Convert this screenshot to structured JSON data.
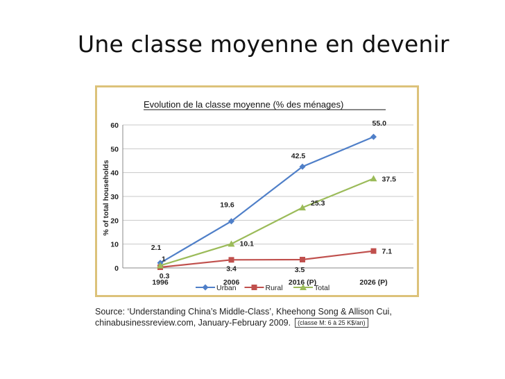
{
  "slide": {
    "title": "Une classe moyenne en devenir"
  },
  "colors": {
    "frame": "#dcc27a",
    "urban": "#4f7fc8",
    "rural": "#c0504d",
    "total": "#9bbb59",
    "grid": "#c8c8c8"
  },
  "chart_data": {
    "type": "line",
    "title": "Evolution de la classe moyenne (% des ménages)",
    "xlabel": "",
    "ylabel": "% of total households",
    "categories": [
      "1996",
      "2006",
      "2016 (P)",
      "2026 (P)"
    ],
    "ylim": [
      0,
      60
    ],
    "yticks": [
      0,
      10,
      20,
      30,
      40,
      50,
      60
    ],
    "grid": true,
    "legend_position": "bottom",
    "series": [
      {
        "name": "Urban",
        "values": [
          2.1,
          19.6,
          42.5,
          55.0
        ],
        "labels": [
          "2.1",
          "19.6",
          "42.5",
          "55.0"
        ],
        "color": "#4f7fc8",
        "marker": "diamond"
      },
      {
        "name": "Rural",
        "values": [
          0.3,
          3.4,
          3.5,
          7.1
        ],
        "labels": [
          "0.3",
          "3.4",
          "3.5",
          "7.1"
        ],
        "color": "#c0504d",
        "marker": "square"
      },
      {
        "name": "Total",
        "values": [
          1,
          10.1,
          25.3,
          37.5
        ],
        "labels": [
          "1",
          "10.1",
          "25.3",
          "37.5"
        ],
        "color": "#9bbb59",
        "marker": "triangle"
      }
    ]
  },
  "source": {
    "text": "Source: ‘Understanding China’s Middle-Class’, Kheehong Song & Allison Cui, chinabusinessreview.com, January-February 2009.",
    "note": "(classe M: 6 à 25 K$/an)"
  }
}
